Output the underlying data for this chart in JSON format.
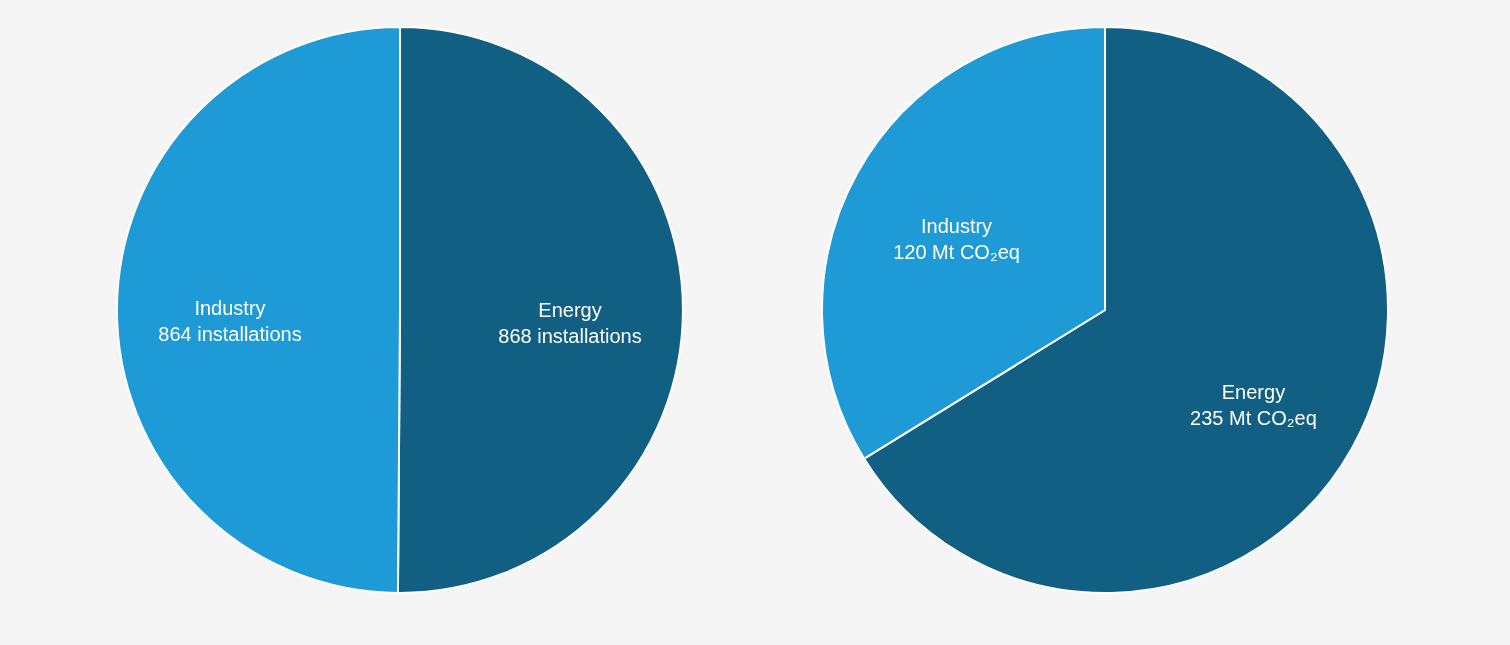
{
  "chart_data": [
    {
      "type": "pie",
      "categories": [
        "Energy",
        "Industry"
      ],
      "values": [
        868,
        864
      ],
      "colors": [
        "#115f83",
        "#1e9ad6"
      ],
      "value_labels": [
        "868 installations",
        "864 installations"
      ],
      "legend": false
    },
    {
      "type": "pie",
      "categories": [
        "Energy",
        "Industry"
      ],
      "values": [
        235,
        120
      ],
      "colors": [
        "#115f83",
        "#1e9ad6"
      ],
      "value_labels": [
        "235 Mt CO₂eq",
        "120 Mt CO₂eq"
      ],
      "legend": false
    }
  ]
}
